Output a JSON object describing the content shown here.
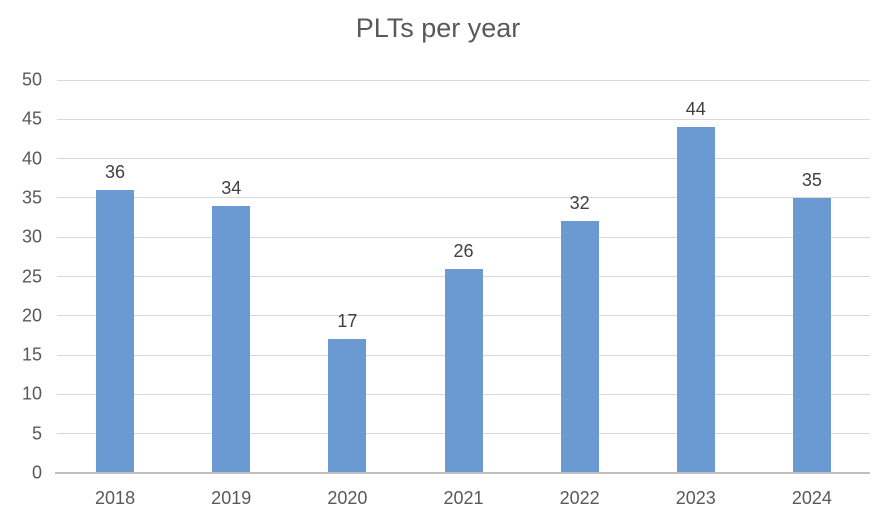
{
  "title": "PLTs per year",
  "colors": {
    "bar": "#6A9AD1",
    "gridline": "#D9D9D9",
    "axis_line": "#BFBFBF",
    "title_text": "#595959",
    "axis_text": "#595959",
    "data_label_text": "#404040",
    "background": "#FFFFFF"
  },
  "chart_data": {
    "type": "bar",
    "title": "PLTs per year",
    "categories": [
      "2018",
      "2019",
      "2020",
      "2021",
      "2022",
      "2023",
      "2024"
    ],
    "values": [
      36,
      34,
      17,
      26,
      32,
      44,
      35
    ],
    "data_labels": [
      "36",
      "34",
      "17",
      "26",
      "32",
      "44",
      "35"
    ],
    "xlabel": "",
    "ylabel": "",
    "ylim": [
      0,
      50
    ],
    "ytick_interval": 5,
    "yticks": [
      "0",
      "5",
      "10",
      "15",
      "20",
      "25",
      "30",
      "35",
      "40",
      "45",
      "50"
    ],
    "grid": true,
    "legend": false
  }
}
